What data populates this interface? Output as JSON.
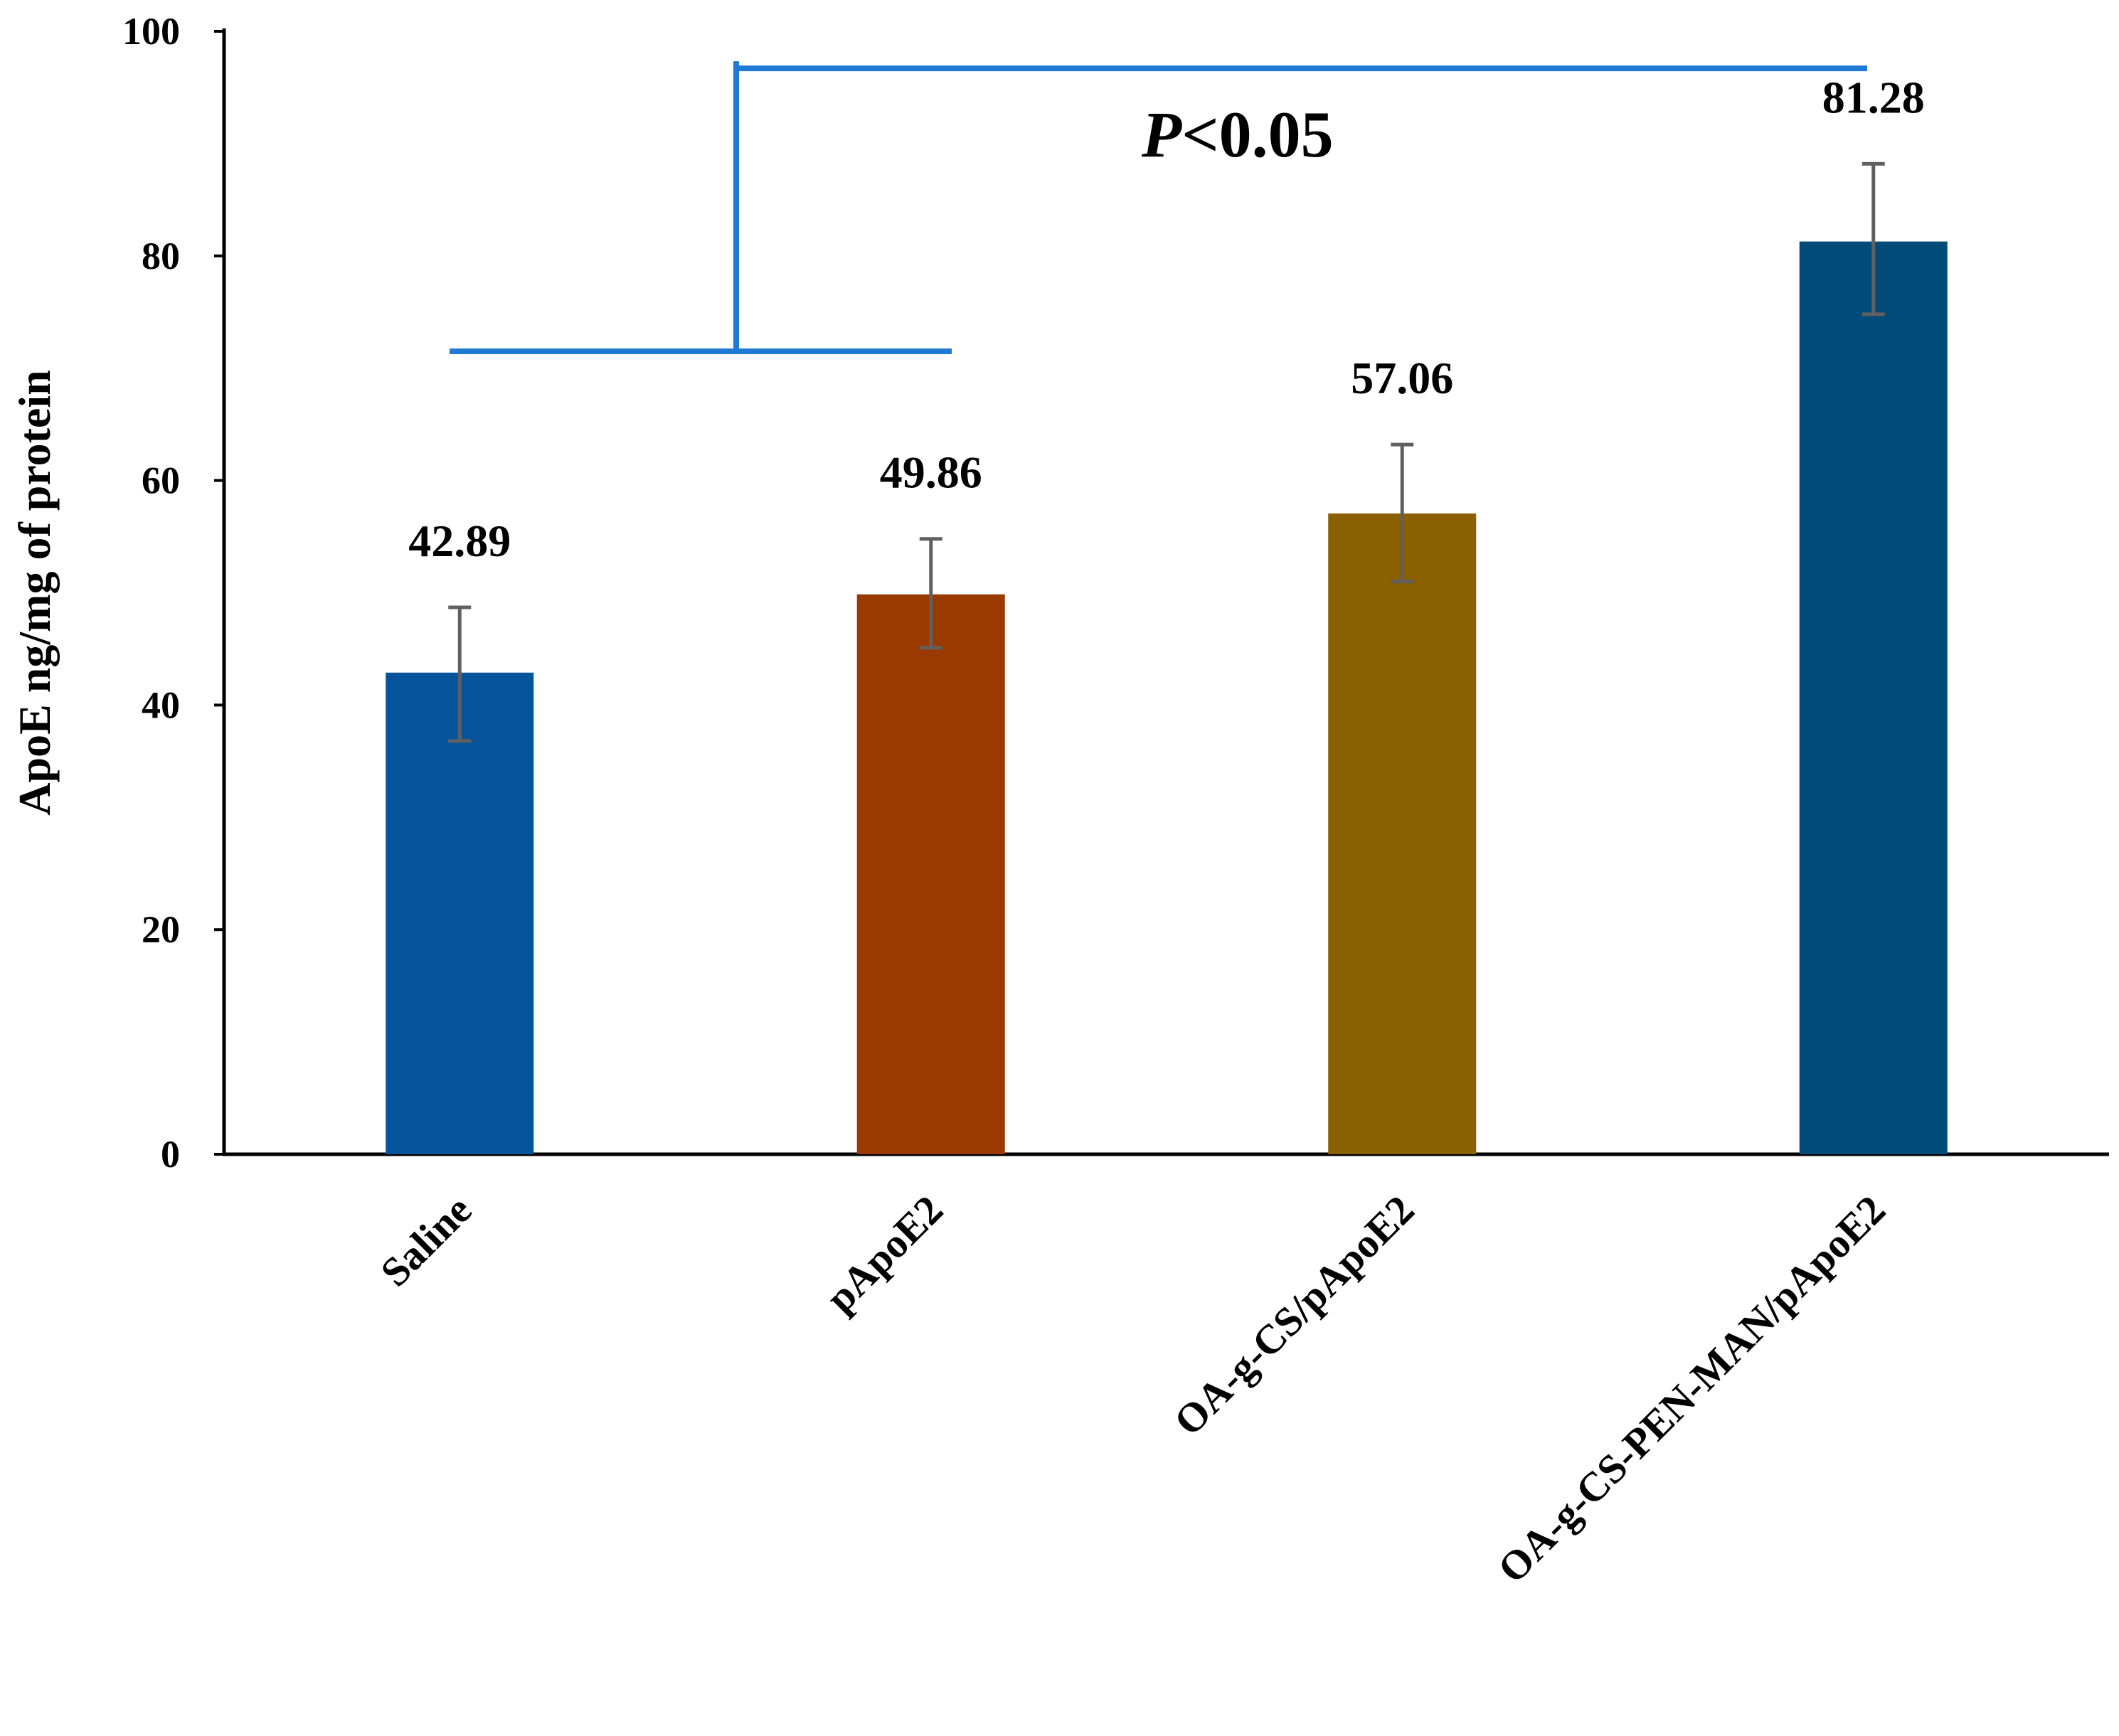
{
  "chart_data": {
    "type": "bar",
    "title": "",
    "xlabel": "",
    "ylabel": "ApoE ng/mg of protein",
    "ylim": [
      0,
      100
    ],
    "yticks": [
      0,
      20,
      40,
      60,
      80,
      100
    ],
    "grid": false,
    "categories": [
      "Saline",
      "pApoE2",
      "OA-g-CS/pApoE2",
      "OA-g-CS-PEN-MAN/pApoE2"
    ],
    "values": [
      42.89,
      49.86,
      57.06,
      81.28
    ],
    "value_labels": [
      "42.89",
      "49.86",
      "57.06",
      "81.28"
    ],
    "error_bars": [
      {
        "low": 36.8,
        "high": 48.7
      },
      {
        "low": 45.1,
        "high": 54.8
      },
      {
        "low": 51.0,
        "high": 63.2
      },
      {
        "low": 74.8,
        "high": 88.2
      }
    ],
    "bar_colors": [
      "#05549C",
      "#9A3A00",
      "#8A6000",
      "#004B77"
    ],
    "error_bar_color": "#606060",
    "significance": {
      "label_italic": "P",
      "label_rest": "<0.05",
      "color": "#1F7AD6",
      "group_from": [
        "Saline",
        "pApoE2"
      ],
      "group_to": "OA-g-CS-PEN-MAN/pApoE2",
      "bracket_low": 71.5,
      "bracket_high": 96.7
    }
  }
}
